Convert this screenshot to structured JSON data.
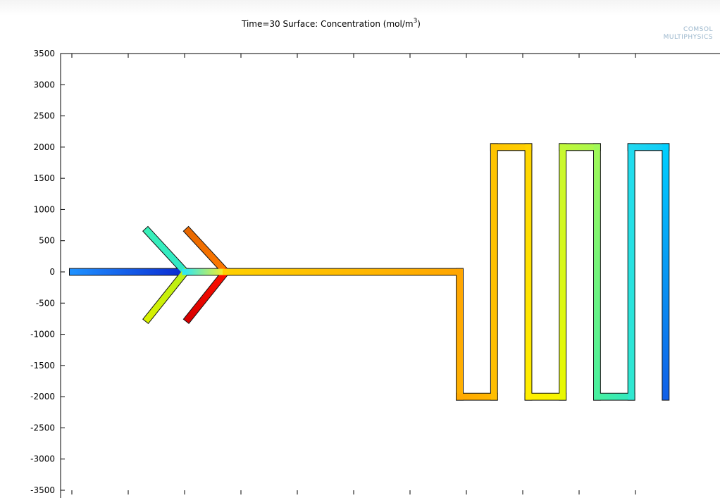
{
  "headline": "",
  "chart_data": {
    "type": "heatmap",
    "title_prefix": "Time=30  Surface: Concentration (mol/m",
    "title_superscript": "3",
    "title_suffix": ")",
    "logo_line1": "COMSOL",
    "logo_line2": "MULTIPHYSICS",
    "ylim": [
      -3500,
      3500
    ],
    "yticks": [
      "3500",
      "3000",
      "2500",
      "2000",
      "1500",
      "1000",
      "500",
      "0",
      "-500",
      "-1000",
      "-1500",
      "-2000",
      "-2500",
      "-3000",
      "-3500"
    ],
    "xtick_count": 11,
    "channel_width": 100,
    "inlets": [
      {
        "name": "main-inlet",
        "from": [
          -4500,
          0
        ],
        "to": [
          -2700,
          0
        ],
        "colors": [
          "#1e90ff",
          "#0a28d0"
        ]
      },
      {
        "name": "upper-left-branch",
        "from": [
          -3300,
          650
        ],
        "to": [
          -2700,
          0
        ],
        "colors": [
          "#38f0b8",
          "#30e8c8"
        ]
      },
      {
        "name": "lower-left-branch",
        "from": [
          -3300,
          -750
        ],
        "to": [
          -2700,
          0
        ],
        "colors": [
          "#d8f000",
          "#b8f018"
        ]
      },
      {
        "name": "upper-right-branch",
        "from": [
          -2650,
          650
        ],
        "to": [
          -2050,
          0
        ],
        "colors": [
          "#e86800",
          "#ff7a00"
        ]
      },
      {
        "name": "lower-right-branch",
        "from": [
          -2650,
          -750
        ],
        "to": [
          -2050,
          0
        ],
        "colors": [
          "#d80000",
          "#ff1000"
        ]
      },
      {
        "name": "mixing-junction",
        "from": [
          -2700,
          0
        ],
        "to": [
          -2050,
          0
        ],
        "colors": [
          "#30e8f0",
          "#ffee20"
        ]
      },
      {
        "name": "main-channel",
        "from": [
          -2050,
          0
        ],
        "to": [
          1700,
          0
        ],
        "colors": [
          "#ffd000",
          "#ffa500"
        ]
      }
    ],
    "serpentine": [
      {
        "name": "seg-down-1",
        "from": [
          1700,
          0
        ],
        "to": [
          1700,
          -2000
        ],
        "colors": [
          "#ffa500",
          "#ffb000"
        ]
      },
      {
        "name": "seg-bottom-1",
        "from": [
          1700,
          -2000
        ],
        "to": [
          2250,
          -2000
        ],
        "colors": [
          "#ffa800",
          "#ffb800"
        ]
      },
      {
        "name": "seg-up-1",
        "from": [
          2250,
          -2000
        ],
        "to": [
          2250,
          2000
        ],
        "colors": [
          "#ffbe00",
          "#ffc400"
        ]
      },
      {
        "name": "seg-top-1",
        "from": [
          2250,
          2000
        ],
        "to": [
          2800,
          2000
        ],
        "colors": [
          "#ffc400",
          "#ffd000"
        ]
      },
      {
        "name": "seg-down-2",
        "from": [
          2800,
          2000
        ],
        "to": [
          2800,
          -2000
        ],
        "colors": [
          "#ffd400",
          "#ffee00"
        ]
      },
      {
        "name": "seg-bottom-2",
        "from": [
          2800,
          -2000
        ],
        "to": [
          3350,
          -2000
        ],
        "colors": [
          "#ffee00",
          "#f6f600"
        ]
      },
      {
        "name": "seg-up-2",
        "from": [
          3350,
          -2000
        ],
        "to": [
          3350,
          2000
        ],
        "colors": [
          "#e8f800",
          "#c8f830"
        ]
      },
      {
        "name": "seg-top-2",
        "from": [
          3350,
          2000
        ],
        "to": [
          3900,
          2000
        ],
        "colors": [
          "#c0f838",
          "#a8f850"
        ]
      },
      {
        "name": "seg-down-3",
        "from": [
          3900,
          2000
        ],
        "to": [
          3900,
          -2000
        ],
        "colors": [
          "#a0f858",
          "#48f0a0"
        ]
      },
      {
        "name": "seg-bottom-3",
        "from": [
          3900,
          -2000
        ],
        "to": [
          4450,
          -2000
        ],
        "colors": [
          "#48f0a0",
          "#30e8c0"
        ]
      },
      {
        "name": "seg-up-3",
        "from": [
          4450,
          -2000
        ],
        "to": [
          4450,
          2000
        ],
        "colors": [
          "#30e8d0",
          "#20dcf0"
        ]
      },
      {
        "name": "seg-top-3",
        "from": [
          4450,
          2000
        ],
        "to": [
          5000,
          2000
        ],
        "colors": [
          "#20d8f0",
          "#10ccf8"
        ]
      },
      {
        "name": "seg-outlet",
        "from": [
          5000,
          2000
        ],
        "to": [
          5000,
          -2000
        ],
        "colors": [
          "#00d0ff",
          "#1060e8"
        ]
      }
    ]
  }
}
